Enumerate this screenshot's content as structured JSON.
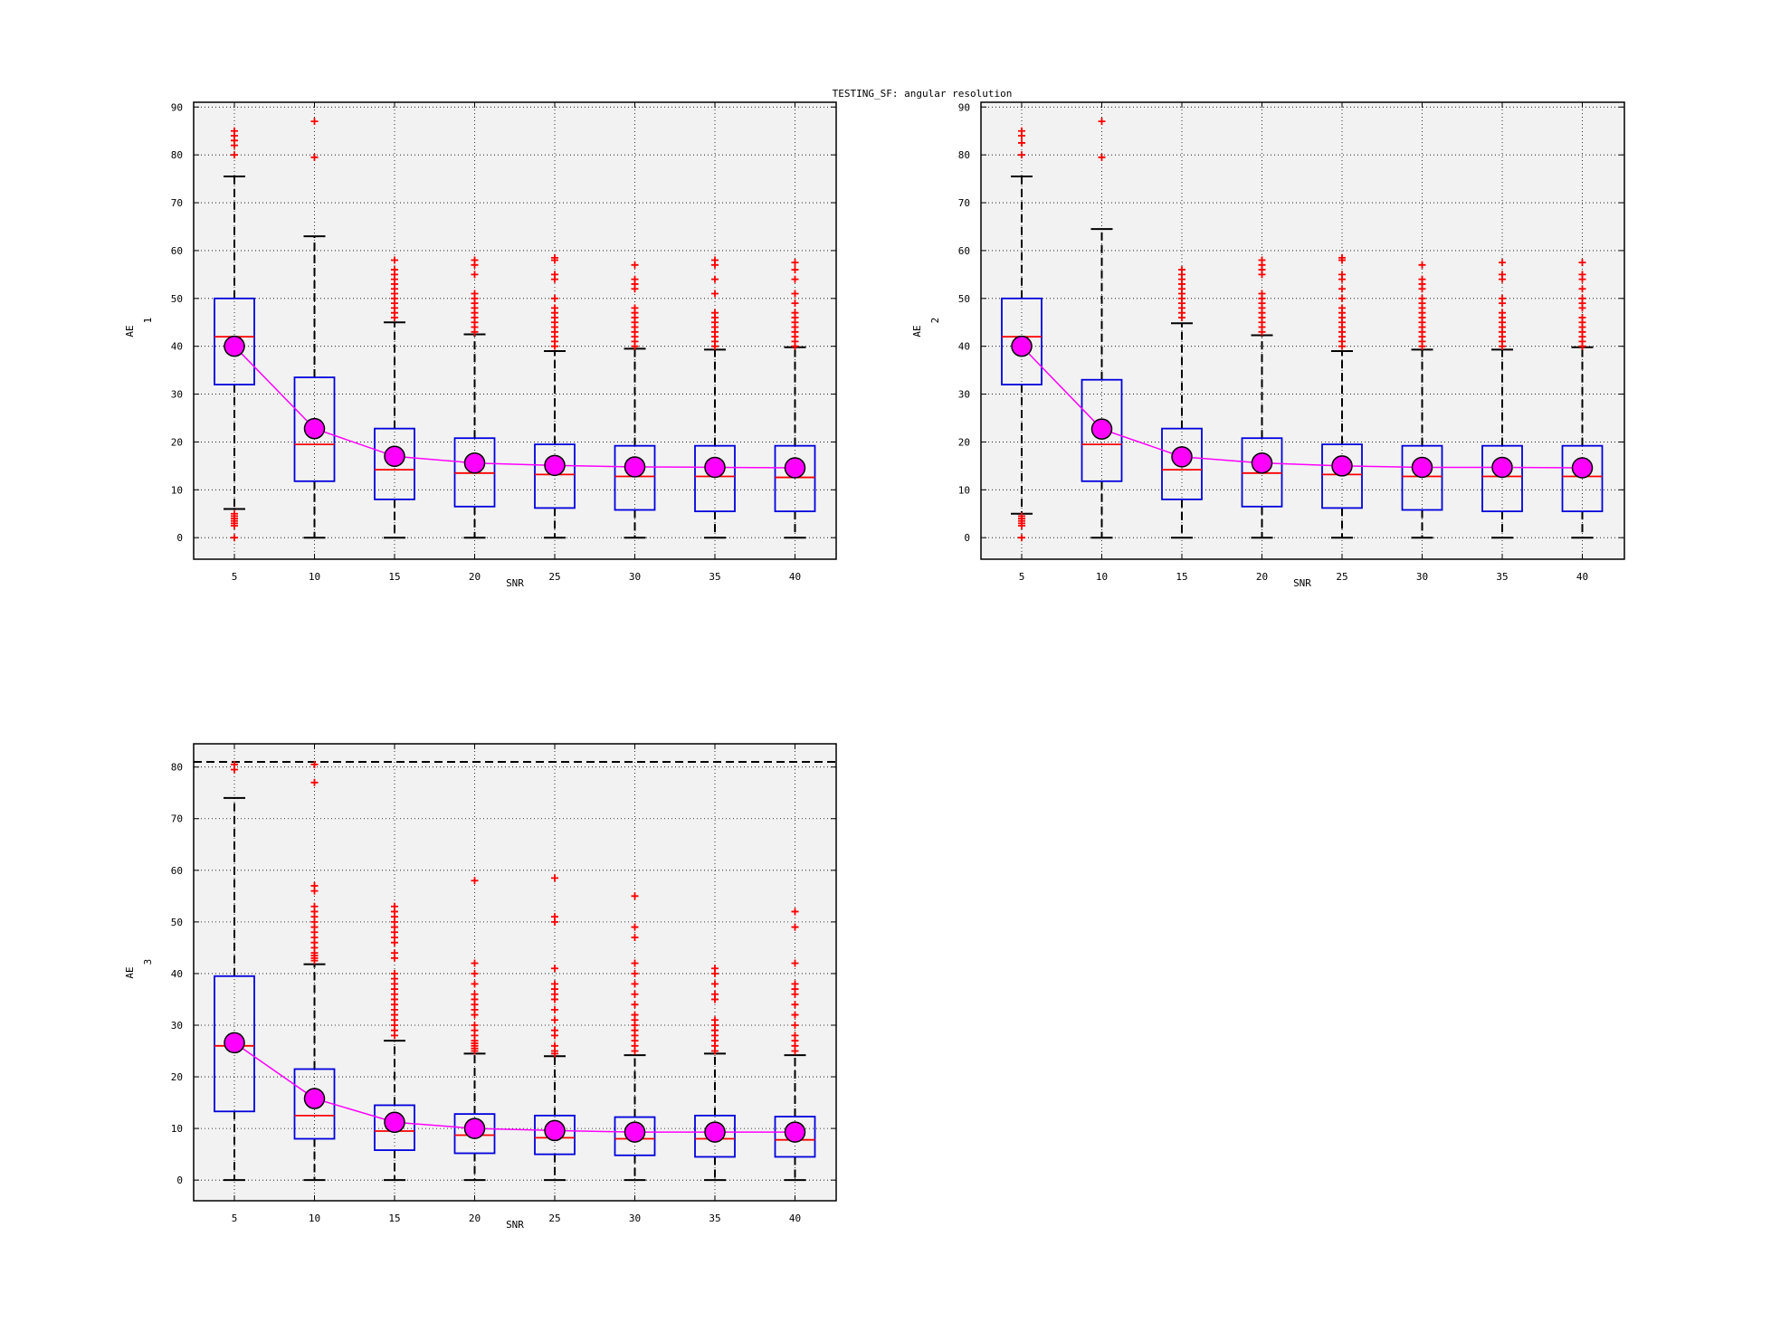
{
  "figure": {
    "title": "TESTING_SF: angular resolution"
  },
  "colors": {
    "box": "#0000dd",
    "median": "#ff0000",
    "outlier": "#ff0000",
    "whisker": "#000000",
    "mean_line": "#ff00ff",
    "mean_marker": "#ff00ff",
    "plot_bg": "#f2f2f2"
  },
  "chart_data": [
    {
      "type": "box",
      "xlabel": "SNR",
      "ylabel": "AE",
      "ylabel_sub": "1",
      "categories": [
        "5",
        "10",
        "15",
        "20",
        "25",
        "30",
        "35",
        "40"
      ],
      "ylim": [
        -4.5,
        91
      ],
      "yticks": [
        0,
        10,
        20,
        30,
        40,
        50,
        60,
        70,
        80,
        90
      ],
      "grid": true,
      "boxes": [
        {
          "q1": 32.0,
          "median": 42.0,
          "q3": 50.0,
          "whisker_low": 6.0,
          "whisker_high": 75.5,
          "outliers": [
            0,
            2.5,
            3,
            3.5,
            4,
            4.5,
            5,
            80,
            82,
            83,
            84,
            85
          ]
        },
        {
          "q1": 11.8,
          "median": 19.5,
          "q3": 33.5,
          "whisker_low": 0,
          "whisker_high": 63.0,
          "outliers": [
            79.5,
            87
          ]
        },
        {
          "q1": 8.0,
          "median": 14.2,
          "q3": 22.8,
          "whisker_low": 0,
          "whisker_high": 45.0,
          "outliers": [
            46,
            47,
            48,
            49,
            50,
            51,
            52,
            53,
            54,
            55,
            56,
            58
          ]
        },
        {
          "q1": 6.5,
          "median": 13.5,
          "q3": 20.8,
          "whisker_low": 0,
          "whisker_high": 42.5,
          "outliers": [
            43,
            44,
            45,
            46,
            47,
            48,
            49,
            50,
            51,
            55,
            57,
            58
          ]
        },
        {
          "q1": 6.2,
          "median": 13.2,
          "q3": 19.5,
          "whisker_low": 0,
          "whisker_high": 39.0,
          "outliers": [
            40,
            41,
            42,
            43,
            44,
            45,
            46,
            47,
            48,
            50,
            54,
            55,
            58,
            58.5
          ]
        },
        {
          "q1": 5.8,
          "median": 12.8,
          "q3": 19.2,
          "whisker_low": 0,
          "whisker_high": 39.5,
          "outliers": [
            40,
            41,
            42,
            43,
            44,
            45,
            46,
            47,
            48,
            52,
            53,
            54,
            57
          ]
        },
        {
          "q1": 5.5,
          "median": 12.8,
          "q3": 19.2,
          "whisker_low": 0,
          "whisker_high": 39.3,
          "outliers": [
            40,
            41,
            42,
            43,
            44,
            45,
            46,
            47,
            51,
            54,
            57,
            58
          ]
        },
        {
          "q1": 5.5,
          "median": 12.6,
          "q3": 19.2,
          "whisker_low": 0,
          "whisker_high": 39.8,
          "outliers": [
            40,
            41,
            42,
            43,
            44,
            45,
            46,
            47,
            49,
            51,
            54,
            56,
            57.5
          ]
        }
      ],
      "means": [
        40.0,
        22.8,
        17.0,
        15.6,
        15.1,
        14.8,
        14.7,
        14.6
      ]
    },
    {
      "type": "box",
      "xlabel": "SNR",
      "ylabel": "AE",
      "ylabel_sub": "2",
      "categories": [
        "5",
        "10",
        "15",
        "20",
        "25",
        "30",
        "35",
        "40"
      ],
      "ylim": [
        -4.5,
        91
      ],
      "yticks": [
        0,
        10,
        20,
        30,
        40,
        50,
        60,
        70,
        80,
        90
      ],
      "grid": true,
      "boxes": [
        {
          "q1": 32.0,
          "median": 42.0,
          "q3": 50.0,
          "whisker_low": 5.0,
          "whisker_high": 75.5,
          "outliers": [
            0,
            2.5,
            3,
            3.5,
            4,
            4.5,
            80,
            82.5,
            84,
            85
          ]
        },
        {
          "q1": 11.8,
          "median": 19.5,
          "q3": 33.0,
          "whisker_low": 0,
          "whisker_high": 64.5,
          "outliers": [
            79.5,
            87
          ]
        },
        {
          "q1": 8.0,
          "median": 14.2,
          "q3": 22.8,
          "whisker_low": 0,
          "whisker_high": 44.8,
          "outliers": [
            46,
            47,
            48,
            49,
            50,
            51,
            52,
            53,
            54,
            55,
            56
          ]
        },
        {
          "q1": 6.5,
          "median": 13.5,
          "q3": 20.8,
          "whisker_low": 0,
          "whisker_high": 42.3,
          "outliers": [
            43,
            44,
            45,
            46,
            47,
            48,
            49,
            50,
            51,
            55,
            56,
            57,
            58
          ]
        },
        {
          "q1": 6.2,
          "median": 13.2,
          "q3": 19.5,
          "whisker_low": 0,
          "whisker_high": 39.0,
          "outliers": [
            40,
            41,
            42,
            43,
            44,
            45,
            46,
            47,
            48,
            50,
            52,
            54,
            55,
            58,
            58.5
          ]
        },
        {
          "q1": 5.8,
          "median": 12.8,
          "q3": 19.2,
          "whisker_low": 0,
          "whisker_high": 39.3,
          "outliers": [
            40,
            41,
            42,
            43,
            44,
            45,
            46,
            47,
            48,
            49,
            50,
            52,
            53,
            54,
            57
          ]
        },
        {
          "q1": 5.5,
          "median": 12.8,
          "q3": 19.2,
          "whisker_low": 0,
          "whisker_high": 39.3,
          "outliers": [
            40,
            41,
            42,
            43,
            44,
            45,
            46,
            47,
            49,
            50,
            54,
            55,
            57.5
          ]
        },
        {
          "q1": 5.5,
          "median": 12.8,
          "q3": 19.2,
          "whisker_low": 0,
          "whisker_high": 39.8,
          "outliers": [
            40,
            41,
            42,
            43,
            44,
            45,
            46,
            48,
            49,
            50,
            52,
            54,
            55,
            57.5
          ]
        }
      ],
      "means": [
        40.0,
        22.7,
        16.9,
        15.6,
        15.0,
        14.7,
        14.7,
        14.6
      ]
    },
    {
      "type": "box",
      "xlabel": "SNR",
      "ylabel": "AE",
      "ylabel_sub": "3",
      "categories": [
        "5",
        "10",
        "15",
        "20",
        "25",
        "30",
        "35",
        "40"
      ],
      "ylim": [
        -4,
        84.5
      ],
      "yticks": [
        0,
        10,
        20,
        30,
        40,
        50,
        60,
        70,
        80
      ],
      "grid": true,
      "reference_line": 81,
      "boxes": [
        {
          "q1": 13.3,
          "median": 26.0,
          "q3": 39.5,
          "whisker_low": 0,
          "whisker_high": 74.0,
          "outliers": [
            79.5,
            80.5
          ]
        },
        {
          "q1": 8.0,
          "median": 12.5,
          "q3": 21.5,
          "whisker_low": 0,
          "whisker_high": 41.8,
          "outliers": [
            42.5,
            43,
            43.5,
            44,
            45,
            46,
            47,
            48,
            49,
            50,
            51,
            52,
            53,
            56,
            57,
            77,
            80.5
          ]
        },
        {
          "q1": 5.8,
          "median": 9.5,
          "q3": 14.5,
          "whisker_low": 0,
          "whisker_high": 27.0,
          "outliers": [
            28,
            29,
            30,
            31,
            32,
            33,
            34,
            35,
            36,
            37,
            38,
            39,
            40,
            43,
            44,
            46,
            47,
            48,
            49,
            50,
            51,
            52,
            53
          ]
        },
        {
          "q1": 5.2,
          "median": 8.7,
          "q3": 12.8,
          "whisker_low": 0,
          "whisker_high": 24.5,
          "outliers": [
            25,
            25.5,
            26,
            26.5,
            27,
            28,
            29,
            30,
            32,
            33,
            34,
            35,
            36,
            38,
            40,
            42,
            58
          ]
        },
        {
          "q1": 5.0,
          "median": 8.2,
          "q3": 12.5,
          "whisker_low": 0,
          "whisker_high": 24.0,
          "outliers": [
            24.5,
            25,
            26,
            28,
            29,
            31,
            33,
            35,
            36,
            37,
            38,
            41,
            50,
            51,
            58.5
          ]
        },
        {
          "q1": 4.8,
          "median": 8.0,
          "q3": 12.2,
          "whisker_low": 0,
          "whisker_high": 24.2,
          "outliers": [
            25,
            26,
            27,
            28,
            29,
            30,
            31,
            32,
            34,
            36,
            38,
            40,
            42,
            47,
            49,
            55
          ]
        },
        {
          "q1": 4.5,
          "median": 8.0,
          "q3": 12.5,
          "whisker_low": 0,
          "whisker_high": 24.5,
          "outliers": [
            25,
            26,
            27,
            28,
            29,
            30,
            31,
            35,
            36,
            38,
            40,
            41
          ]
        },
        {
          "q1": 4.5,
          "median": 7.8,
          "q3": 12.3,
          "whisker_low": 0,
          "whisker_high": 24.2,
          "outliers": [
            25,
            26,
            27,
            28,
            30,
            32,
            34,
            36,
            37,
            38,
            42,
            49,
            52
          ]
        }
      ],
      "means": [
        26.6,
        15.8,
        11.2,
        10.0,
        9.6,
        9.3,
        9.3,
        9.3
      ]
    }
  ]
}
